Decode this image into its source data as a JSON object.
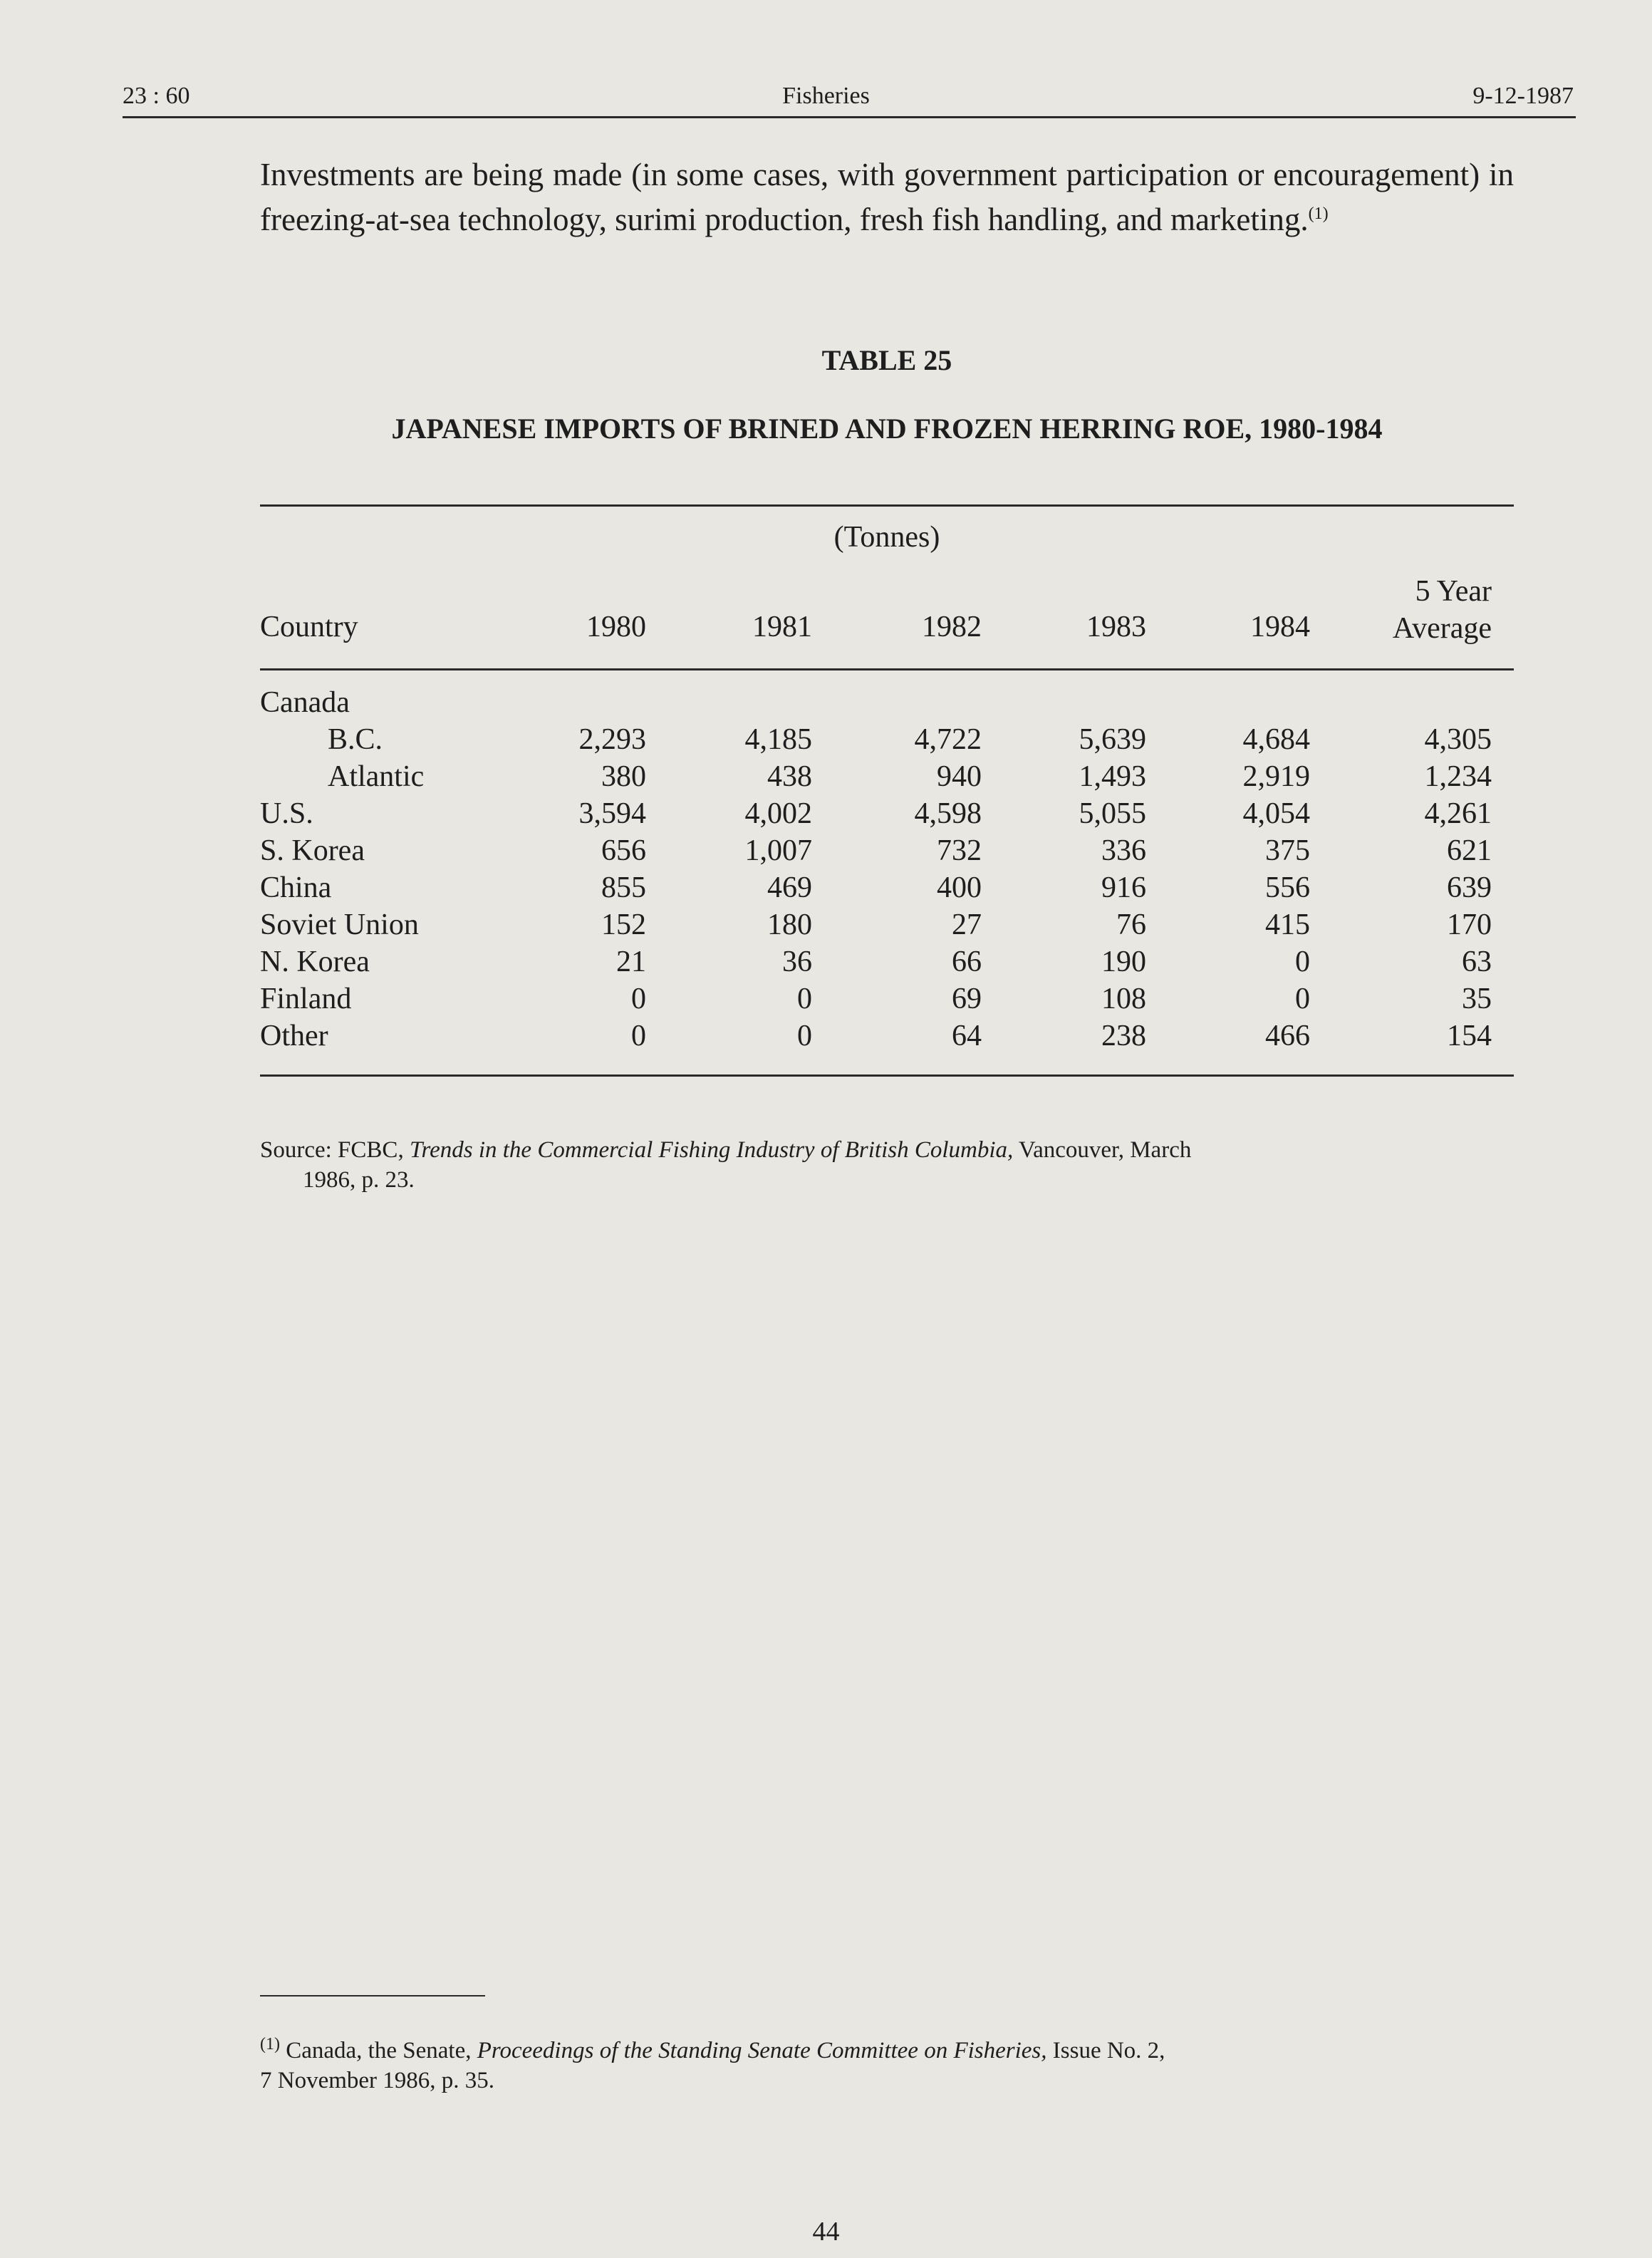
{
  "header": {
    "left": "23 : 60",
    "center": "Fisheries",
    "right": "9-12-1987"
  },
  "body_paragraph": "Investments are being made (in some cases, with government participation or encouragement) in freezing-at-sea technology, surimi production, fresh fish handling, and marketing.",
  "body_footnote_ref": "(1)",
  "table": {
    "number": "TABLE 25",
    "title": "JAPANESE IMPORTS OF BRINED AND FROZEN HERRING ROE, 1980-1984",
    "unit": "(Tonnes)",
    "columns": [
      "Country",
      "1980",
      "1981",
      "1982",
      "1983",
      "1984",
      "5 Year",
      "Average"
    ],
    "rows": [
      {
        "country": "Canada",
        "indent": false,
        "values": []
      },
      {
        "country": "B.C.",
        "indent": true,
        "values": [
          "2,293",
          "4,185",
          "4,722",
          "5,639",
          "4,684",
          "4,305"
        ]
      },
      {
        "country": "Atlantic",
        "indent": true,
        "values": [
          "380",
          "438",
          "940",
          "1,493",
          "2,919",
          "1,234"
        ]
      },
      {
        "country": "U.S.",
        "indent": false,
        "values": [
          "3,594",
          "4,002",
          "4,598",
          "5,055",
          "4,054",
          "4,261"
        ]
      },
      {
        "country": "S. Korea",
        "indent": false,
        "values": [
          "656",
          "1,007",
          "732",
          "336",
          "375",
          "621"
        ]
      },
      {
        "country": "China",
        "indent": false,
        "values": [
          "855",
          "469",
          "400",
          "916",
          "556",
          "639"
        ]
      },
      {
        "country": "Soviet Union",
        "indent": false,
        "values": [
          "152",
          "180",
          "27",
          "76",
          "415",
          "170"
        ]
      },
      {
        "country": "N. Korea",
        "indent": false,
        "values": [
          "21",
          "36",
          "66",
          "190",
          "0",
          "63"
        ]
      },
      {
        "country": "Finland",
        "indent": false,
        "values": [
          "0",
          "0",
          "69",
          "108",
          "0",
          "35"
        ]
      },
      {
        "country": "Other",
        "indent": false,
        "values": [
          "0",
          "0",
          "64",
          "238",
          "466",
          "154"
        ]
      }
    ],
    "source_prefix": "Source: FCBC, ",
    "source_title": "Trends in the Commercial Fishing Industry of British Columbia,",
    "source_suffix": " Vancouver, March",
    "source_line2": "1986, p. 23."
  },
  "footnote": {
    "marker": "(1)",
    "prefix": " Canada, the Senate, ",
    "title": "Proceedings of the Standing Senate Committee on Fisheries,",
    "suffix": " Issue No. 2,",
    "line2": "7 November 1986, p. 35."
  },
  "page_number": "44"
}
